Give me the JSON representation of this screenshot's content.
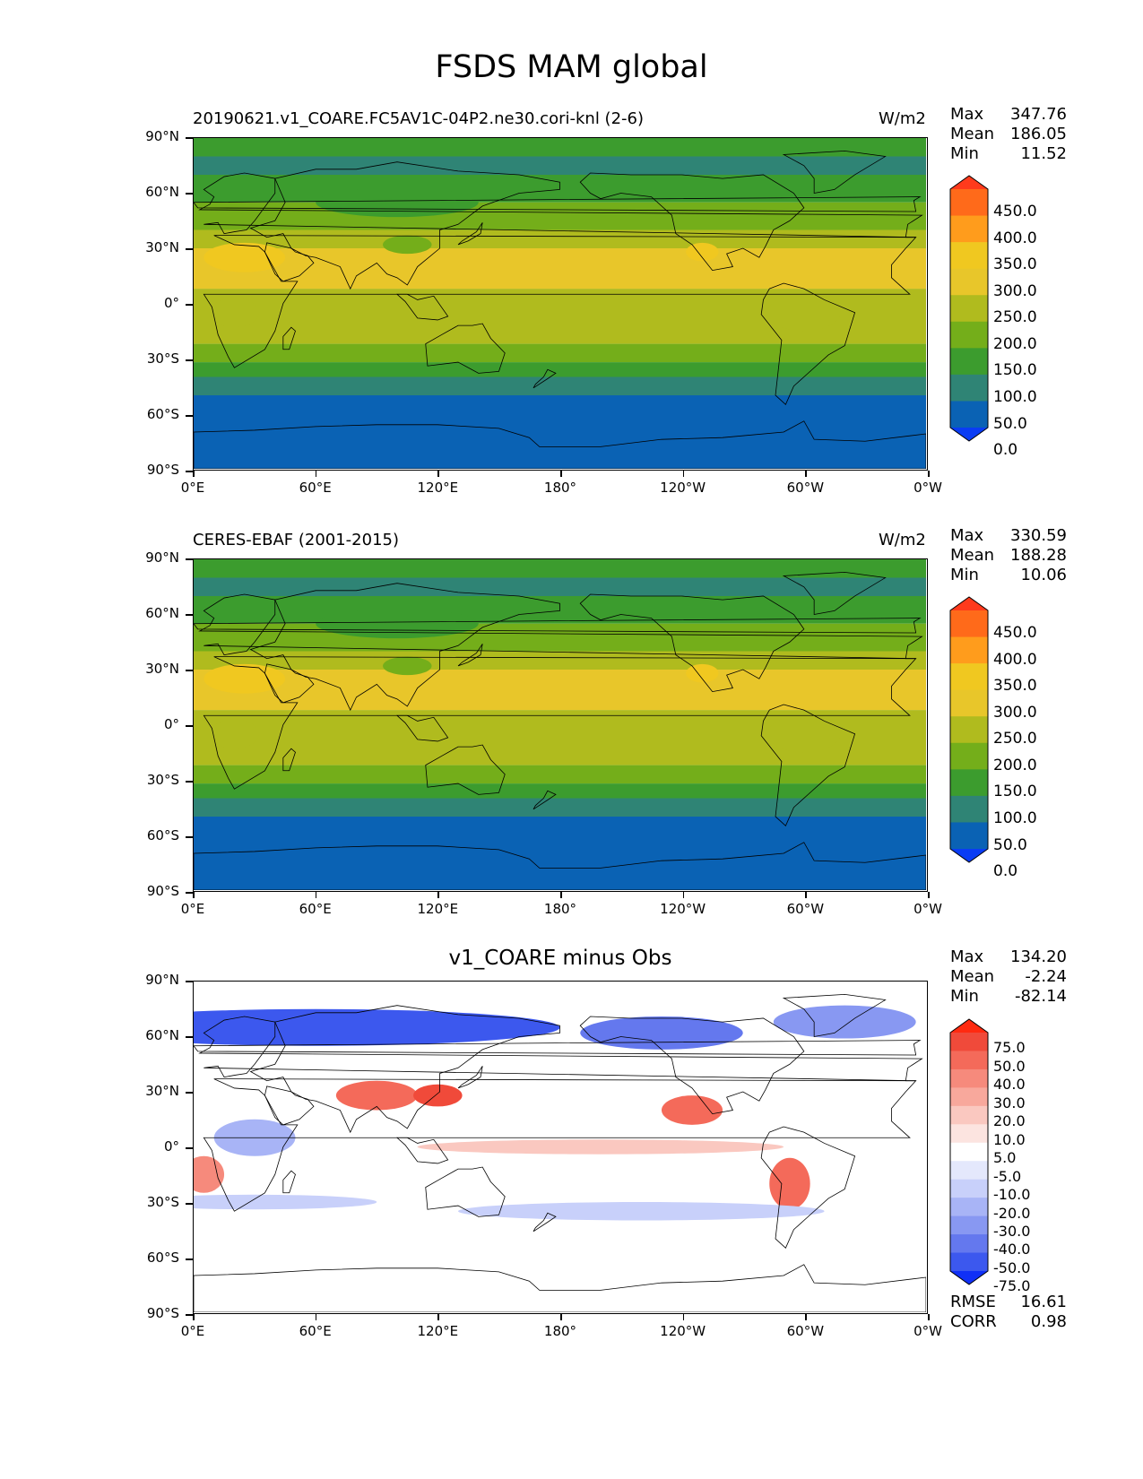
{
  "title": "FSDS MAM global",
  "y_ticks": [
    "90°N",
    "60°N",
    "30°N",
    "0°",
    "30°S",
    "60°S",
    "90°S"
  ],
  "x_ticks": [
    "0°E",
    "60°E",
    "120°E",
    "180°",
    "120°W",
    "60°W",
    "0°W"
  ],
  "panels": [
    {
      "left_title": "20190621.v1_COARE.FC5AV1C-04P2.ne30.cori-knl (2-6)",
      "units": "W/m2",
      "center_title": "",
      "stats": [
        [
          "Max",
          "347.76"
        ],
        [
          "Mean",
          "186.05"
        ],
        [
          "Min",
          "11.52"
        ]
      ],
      "colorbar": {
        "labels": [
          "450.0",
          "400.0",
          "350.0",
          "300.0",
          "250.0",
          "200.0",
          "150.0",
          "100.0",
          "50.0",
          "0.0"
        ],
        "colors": [
          "#ff3a1c",
          "#ff6a1a",
          "#ff9c1c",
          "#f0c820",
          "#e8c62a",
          "#b0bb1e",
          "#74ae1a",
          "#3c9c2e",
          "#2f8475",
          "#0a62b4",
          "#0a3cf4"
        ]
      },
      "extra": []
    },
    {
      "left_title": "CERES-EBAF (2001-2015)",
      "units": "W/m2",
      "center_title": "",
      "stats": [
        [
          "Max",
          "330.59"
        ],
        [
          "Mean",
          "188.28"
        ],
        [
          "Min",
          "10.06"
        ]
      ],
      "colorbar": {
        "labels": [
          "450.0",
          "400.0",
          "350.0",
          "300.0",
          "250.0",
          "200.0",
          "150.0",
          "100.0",
          "50.0",
          "0.0"
        ],
        "colors": [
          "#ff3a1c",
          "#ff6a1a",
          "#ff9c1c",
          "#f0c820",
          "#e8c62a",
          "#b0bb1e",
          "#74ae1a",
          "#3c9c2e",
          "#2f8475",
          "#0a62b4",
          "#0a3cf4"
        ]
      },
      "extra": []
    },
    {
      "left_title": "",
      "units": "",
      "center_title": "v1_COARE minus Obs",
      "stats": [
        [
          "Max",
          "134.20"
        ],
        [
          "Mean",
          "-2.24"
        ],
        [
          "Min",
          "-82.14"
        ]
      ],
      "colorbar": {
        "labels": [
          "75.0",
          "50.0",
          "40.0",
          "30.0",
          "20.0",
          "10.0",
          "5.0",
          "-5.0",
          "-10.0",
          "-20.0",
          "-30.0",
          "-40.0",
          "-50.0",
          "-75.0"
        ],
        "colors": [
          "#ff2a10",
          "#f04a3a",
          "#f46a5a",
          "#f68a7c",
          "#f8a89c",
          "#fac8c0",
          "#fce4e0",
          "#ffffff",
          "#e4e8fc",
          "#c8d0fa",
          "#a8b4f6",
          "#8898f2",
          "#6478ee",
          "#3c58ee",
          "#1030f6"
        ]
      },
      "extra": [
        [
          "RMSE",
          "16.61"
        ],
        [
          "CORR",
          "0.98"
        ]
      ]
    }
  ]
}
